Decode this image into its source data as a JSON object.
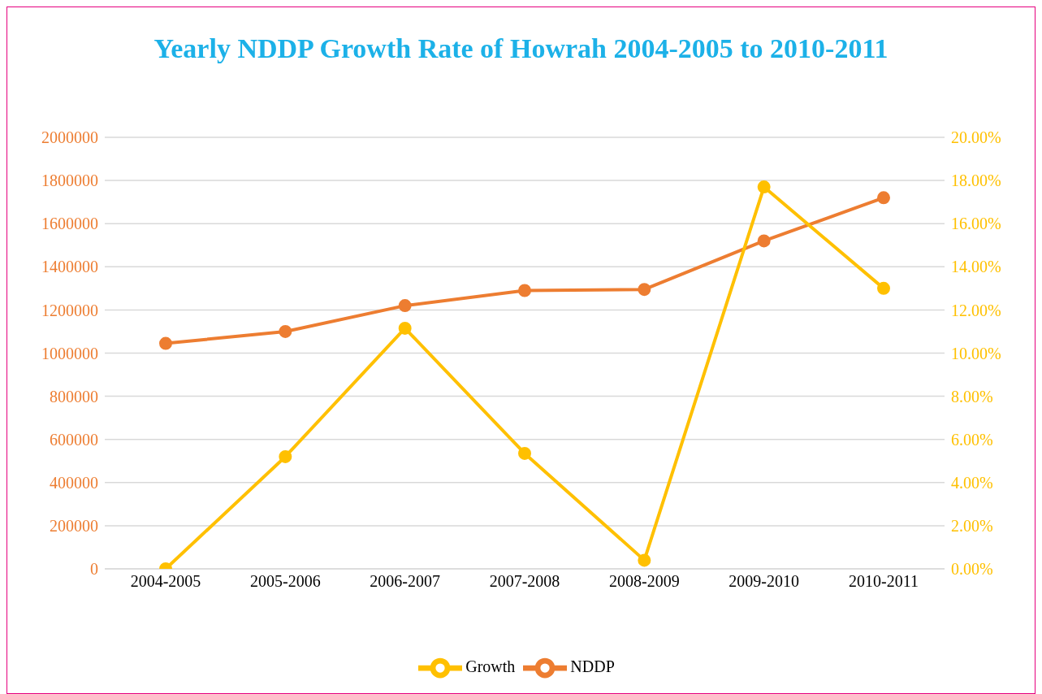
{
  "chart_data": {
    "type": "line",
    "title": "Yearly NDDP Growth Rate of Howrah 2004-2005 to 2010-2011",
    "categories": [
      "2004-2005",
      "2005-2006",
      "2006-2007",
      "2007-2008",
      "2008-2009",
      "2009-2010",
      "2010-2011"
    ],
    "series": [
      {
        "name": "NDDP",
        "color": "#ed7d31",
        "values": [
          1045000,
          1100000,
          1220000,
          1290000,
          1295000,
          1520000,
          1720000
        ]
      },
      {
        "name": "Growth",
        "color": "#ffc000",
        "axis": "y2",
        "values": [
          0,
          5.2,
          11.15,
          5.35,
          0.4,
          17.7,
          13.0
        ]
      }
    ],
    "ylim": [
      0,
      2000000
    ],
    "yticks": [
      0,
      200000,
      400000,
      600000,
      800000,
      1000000,
      1200000,
      1400000,
      1600000,
      1800000,
      2000000
    ],
    "y2lim": [
      0,
      20
    ],
    "y2ticks": [
      {
        "value": 0,
        "label": "0.00%"
      },
      {
        "value": 2,
        "label": "2.00%"
      },
      {
        "value": 4,
        "label": "4.00%"
      },
      {
        "value": 6,
        "label": "6.00%"
      },
      {
        "value": 8,
        "label": "8.00%"
      },
      {
        "value": 10,
        "label": "10.00%"
      },
      {
        "value": 12,
        "label": "12.00%"
      },
      {
        "value": 14,
        "label": "14.00%"
      },
      {
        "value": 16,
        "label": "16.00%"
      },
      {
        "value": 18,
        "label": "18.00%"
      },
      {
        "value": 20,
        "label": "20.00%"
      }
    ],
    "grid": "y",
    "legend": "bottom",
    "marker": "circle",
    "line_style": "solid"
  }
}
